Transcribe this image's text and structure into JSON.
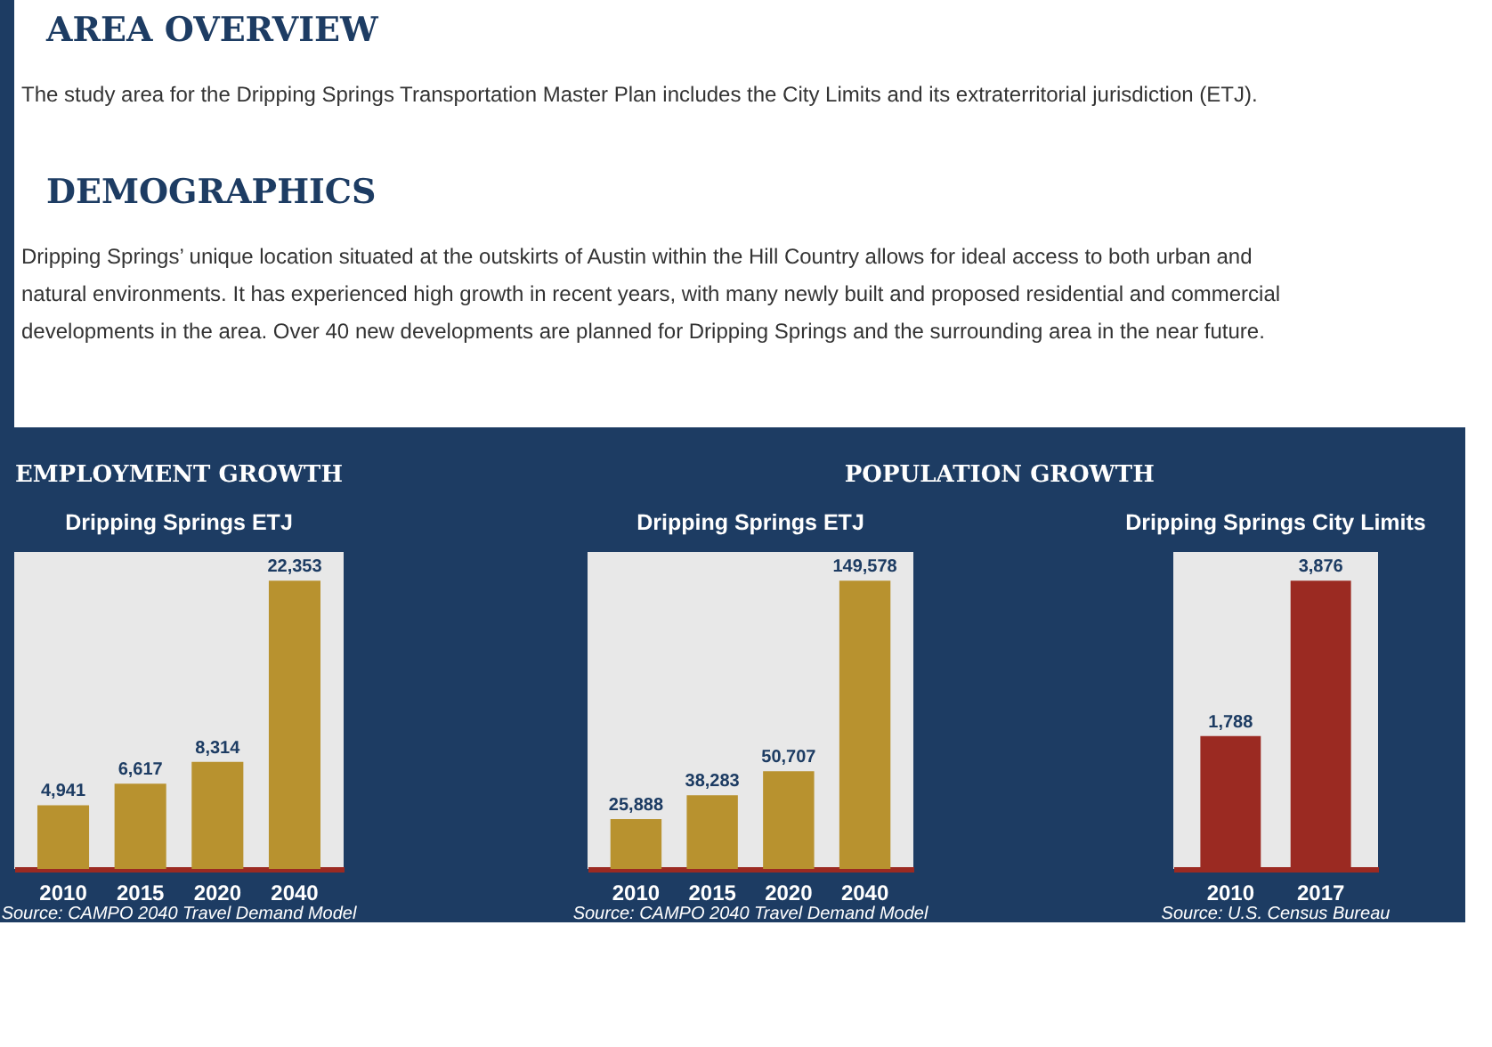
{
  "chart_data": [
    {
      "type": "bar",
      "title": "EMPLOYMENT GROWTH",
      "subtitle": "Dripping Springs ETJ",
      "categories": [
        "2010",
        "2015",
        "2020",
        "2040"
      ],
      "values": [
        4941,
        6617,
        8314,
        22353
      ],
      "color": "#b8922f",
      "value_labels": [
        "4,941",
        "6,617",
        "8,314",
        "22,353"
      ],
      "annotations": [
        "AREA OVERVIEW",
        "The study area for the Dripping Springs Transportation Master Plan includes the City Limits and its extraterritorial jurisdiction (ETJ).",
        "DEMOGRAPHICS",
        "Dripping Springs’ unique location situated at the outskirts of Austin within the Hill Country allows for ideal access to both urban and natural environments. It has experienced high growth in recent years, with many newly built and proposed residential and commercial developments in the area. Over 40 new developments are planned for Dripping Springs and the surrounding area in the near future.",
        "Source: CAMPO 2040 Travel Demand Model"
      ]
    },
    {
      "type": "bar",
      "title": "POPULATION GROWTH",
      "subtitle": "Dripping Springs ETJ",
      "categories": [
        "2010",
        "2015",
        "2020",
        "2040"
      ],
      "values": [
        25888,
        38283,
        50707,
        149578
      ],
      "color": "#b8922f",
      "value_labels": [
        "25,888",
        "38,283",
        "50,707",
        "149,578"
      ],
      "annotations": [
        "Source: CAMPO 2040 Travel Demand Model"
      ]
    },
    {
      "type": "bar",
      "subtitle": "Dripping Springs City Limits",
      "categories": [
        "2010",
        "2017"
      ],
      "values": [
        1788,
        3876
      ],
      "color": "#9b2a22",
      "value_labels": [
        "1,788",
        "3,876"
      ],
      "annotations": [
        "Source: U.S. Census Bureau"
      ]
    }
  ]
}
